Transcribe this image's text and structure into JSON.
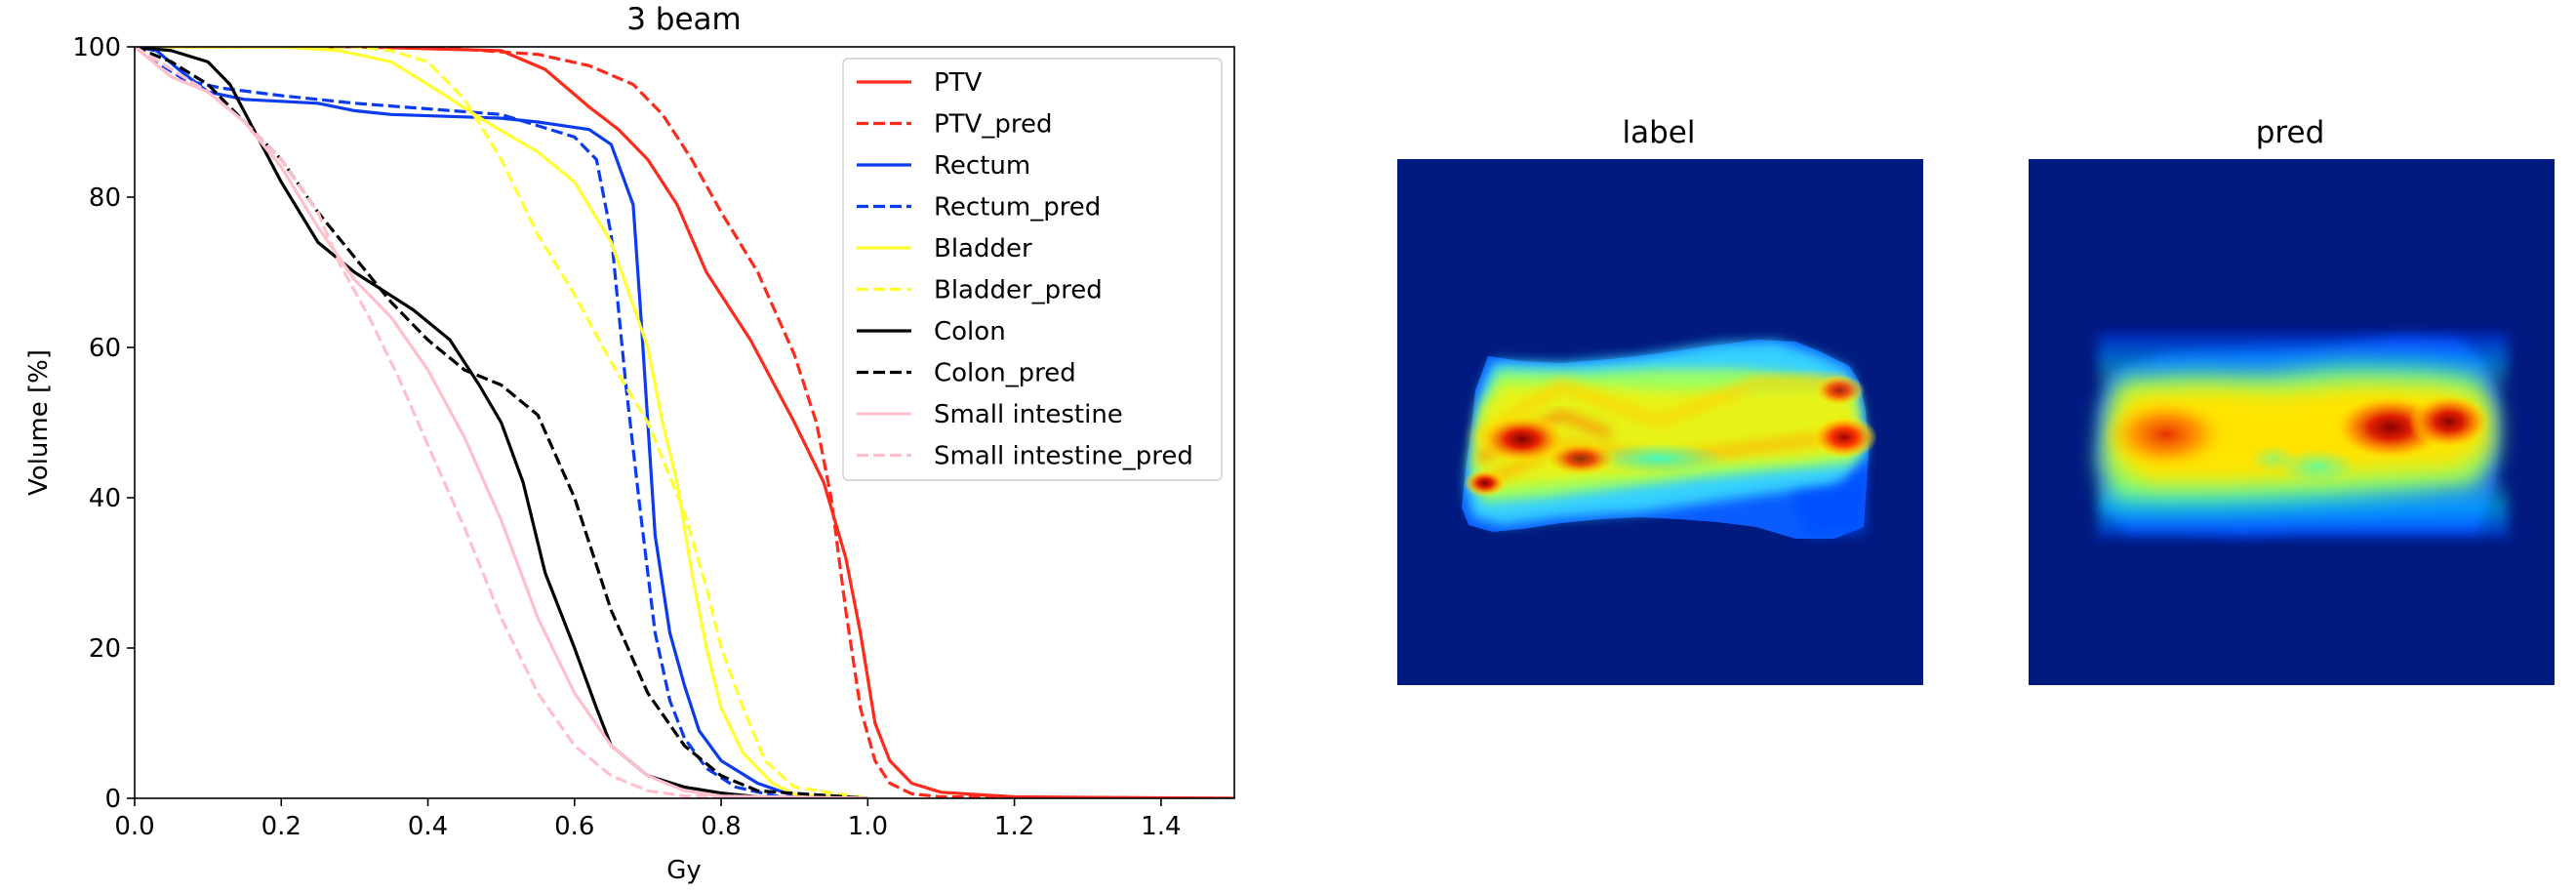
{
  "chart_data": [
    {
      "type": "line",
      "title": "3 beam",
      "xlabel": "Gy",
      "ylabel": "Volume [%]",
      "xlim": [
        0.0,
        1.5
      ],
      "ylim": [
        0,
        100
      ],
      "x_ticks": [
        "0.0",
        "0.2",
        "0.4",
        "0.6",
        "0.8",
        "1.0",
        "1.2",
        "1.4"
      ],
      "y_ticks": [
        "0",
        "20",
        "40",
        "60",
        "80",
        "100"
      ],
      "grid": false,
      "legend_position": "top-right",
      "series": [
        {
          "name": "PTV",
          "color": "#ff2a1a",
          "dash": "solid",
          "x": [
            0.0,
            0.3,
            0.5,
            0.56,
            0.62,
            0.66,
            0.7,
            0.74,
            0.78,
            0.84,
            0.9,
            0.94,
            0.97,
            0.99,
            1.01,
            1.03,
            1.06,
            1.1,
            1.2,
            1.5
          ],
          "y": [
            100,
            100,
            99.5,
            97,
            92,
            89,
            85,
            79,
            70,
            61,
            50,
            42,
            32,
            22,
            10,
            5,
            2,
            0.8,
            0.2,
            0
          ]
        },
        {
          "name": "PTV_pred",
          "color": "#ff2a1a",
          "dash": "dashed",
          "x": [
            0.0,
            0.4,
            0.55,
            0.62,
            0.68,
            0.72,
            0.76,
            0.8,
            0.85,
            0.9,
            0.93,
            0.95,
            0.97,
            0.99,
            1.01,
            1.03,
            1.06,
            1.1,
            1.5
          ],
          "y": [
            100,
            100,
            99,
            97.5,
            95,
            91,
            85,
            78,
            70,
            59,
            50,
            40,
            25,
            12,
            5,
            2,
            0.6,
            0.2,
            0
          ]
        },
        {
          "name": "Rectum",
          "color": "#0b3bef",
          "dash": "solid",
          "x": [
            0.0,
            0.03,
            0.06,
            0.1,
            0.15,
            0.25,
            0.3,
            0.35,
            0.5,
            0.55,
            0.62,
            0.65,
            0.68,
            0.69,
            0.7,
            0.71,
            0.73,
            0.75,
            0.77,
            0.8,
            0.85,
            0.9,
            1.0
          ],
          "y": [
            100,
            99.5,
            97,
            94,
            93,
            92.5,
            91.5,
            91,
            90.5,
            90,
            89,
            87,
            79,
            65,
            50,
            35,
            22,
            15,
            9,
            5,
            2,
            0.3,
            0
          ]
        },
        {
          "name": "Rectum_pred",
          "color": "#0b3bef",
          "dash": "dashed",
          "x": [
            0.0,
            0.03,
            0.07,
            0.12,
            0.2,
            0.3,
            0.5,
            0.6,
            0.63,
            0.65,
            0.67,
            0.69,
            0.71,
            0.73,
            0.75,
            0.78,
            0.82,
            0.88,
            1.0
          ],
          "y": [
            100,
            98,
            95.5,
            94.5,
            93.5,
            92.5,
            91,
            88,
            85,
            75,
            55,
            38,
            22,
            13,
            8,
            4,
            1.5,
            0.2,
            0
          ]
        },
        {
          "name": "Bladder",
          "color": "#ffff33",
          "dash": "solid",
          "x": [
            0.0,
            0.2,
            0.28,
            0.35,
            0.4,
            0.48,
            0.55,
            0.6,
            0.65,
            0.7,
            0.72,
            0.74,
            0.76,
            0.78,
            0.8,
            0.83,
            0.87,
            0.9,
            1.0
          ],
          "y": [
            100,
            100,
            99.5,
            98,
            95,
            90,
            86,
            82,
            74,
            60,
            50,
            42,
            30,
            20,
            12,
            6,
            2,
            0.5,
            0
          ]
        },
        {
          "name": "Bladder_pred",
          "color": "#ffff33",
          "dash": "dashed",
          "x": [
            0.0,
            0.3,
            0.35,
            0.4,
            0.45,
            0.5,
            0.55,
            0.6,
            0.65,
            0.7,
            0.75,
            0.78,
            0.8,
            0.83,
            0.86,
            0.9,
            1.0
          ],
          "y": [
            100,
            100,
            99.5,
            98,
            93,
            85,
            75,
            67,
            58,
            50,
            38,
            28,
            20,
            12,
            5,
            1.5,
            0
          ]
        },
        {
          "name": "Colon",
          "color": "#000000",
          "dash": "solid",
          "x": [
            0.0,
            0.05,
            0.1,
            0.13,
            0.2,
            0.25,
            0.3,
            0.38,
            0.43,
            0.47,
            0.5,
            0.53,
            0.56,
            0.6,
            0.63,
            0.65,
            0.7,
            0.75,
            0.8,
            0.85,
            1.0
          ],
          "y": [
            100,
            99.5,
            98,
            95,
            82,
            74,
            70,
            65,
            61,
            55,
            50,
            42,
            30,
            20,
            12,
            7,
            3,
            1.5,
            0.7,
            0.2,
            0
          ]
        },
        {
          "name": "Colon_pred",
          "color": "#000000",
          "dash": "dashed",
          "x": [
            0.0,
            0.05,
            0.1,
            0.15,
            0.2,
            0.25,
            0.3,
            0.35,
            0.4,
            0.45,
            0.5,
            0.55,
            0.6,
            0.65,
            0.7,
            0.75,
            0.8,
            0.85,
            1.0
          ],
          "y": [
            100,
            98,
            95,
            90,
            85,
            78,
            72,
            66,
            61,
            57,
            55,
            51,
            40,
            25,
            14,
            7,
            3,
            1,
            0
          ]
        },
        {
          "name": "Small intestine",
          "color": "#ffc0cb",
          "dash": "solid",
          "x": [
            0.0,
            0.05,
            0.1,
            0.15,
            0.2,
            0.25,
            0.3,
            0.35,
            0.4,
            0.45,
            0.5,
            0.55,
            0.6,
            0.65,
            0.7,
            0.75,
            0.8,
            1.0
          ],
          "y": [
            100,
            96,
            94,
            90,
            84,
            76,
            69,
            64,
            57,
            48,
            37,
            24,
            14,
            7,
            3,
            1,
            0.3,
            0
          ]
        },
        {
          "name": "Small intestine_pred",
          "color": "#ffc0cb",
          "dash": "dashed",
          "x": [
            0.0,
            0.05,
            0.1,
            0.15,
            0.2,
            0.25,
            0.28,
            0.32,
            0.36,
            0.4,
            0.45,
            0.5,
            0.55,
            0.6,
            0.65,
            0.7,
            0.75,
            1.0
          ],
          "y": [
            100,
            97,
            94,
            90,
            85,
            78,
            71,
            64,
            56,
            47,
            36,
            24,
            14,
            7,
            3,
            1,
            0.3,
            0
          ]
        }
      ]
    },
    {
      "type": "heatmap",
      "title": "label",
      "colormap": "jet",
      "background_color": "#001a80"
    },
    {
      "type": "heatmap",
      "title": "pred",
      "colormap": "jet",
      "background_color": "#001a80"
    }
  ]
}
